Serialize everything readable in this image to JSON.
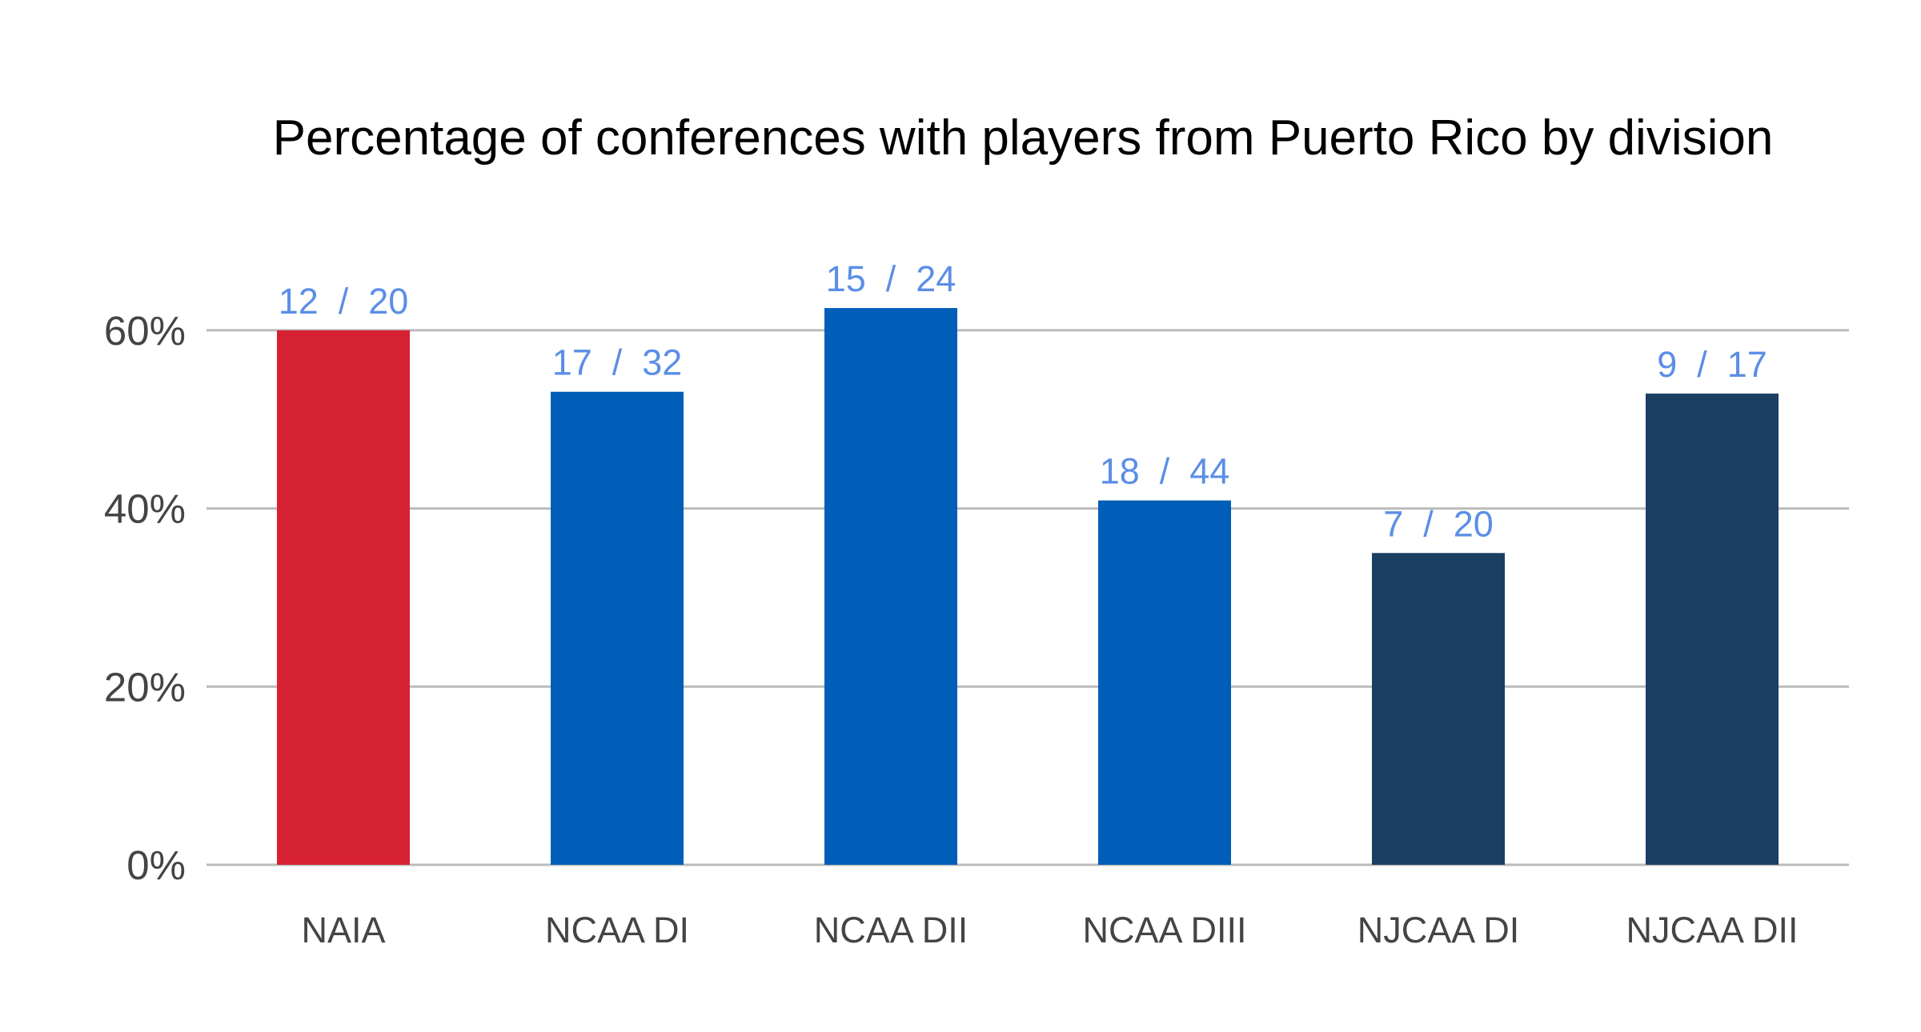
{
  "chart_data": {
    "type": "bar",
    "title": "Percentage of conferences with players from Puerto Rico by division",
    "xlabel": "",
    "ylabel": "",
    "ylim": [
      0,
      70
    ],
    "yticks": [
      0,
      20,
      40,
      60
    ],
    "ytick_labels": [
      "0%",
      "20%",
      "40%",
      "60%"
    ],
    "grid": true,
    "legend": "none",
    "categories": [
      "NAIA",
      "NCAA DI",
      "NCAA DII",
      "NCAA DIII",
      "NJCAA DI",
      "NJCAA DII"
    ],
    "values": [
      60,
      53.1,
      62.5,
      40.9,
      35,
      52.9
    ],
    "data_labels": [
      "12  /  20",
      "17  /  32",
      "15  /  24",
      "18  /  44",
      "7  /  20",
      "9  /  17"
    ],
    "colors": [
      "#d62232",
      "#005eb8",
      "#005eb8",
      "#005eb8",
      "#1b3f63",
      "#1b3f63"
    ],
    "grid_color": "#bbbbbb",
    "data_label_color": "#5b8ee6"
  }
}
